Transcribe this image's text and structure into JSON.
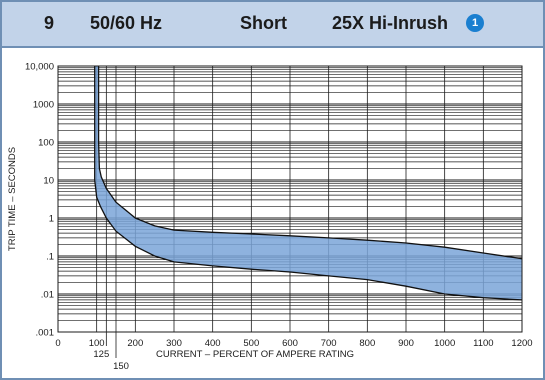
{
  "header": {
    "curve_number": "9",
    "frequency": "50/60 Hz",
    "speed": "Short",
    "curve_name": "25X Hi-Inrush",
    "note_badge": "1"
  },
  "colors": {
    "header_bg": "#c2d3e9",
    "border": "#6f8fb4",
    "band_fill": "#7aa4d8",
    "badge": "#1a7fd0"
  },
  "chart_data": {
    "type": "area",
    "title": "",
    "xlabel": "CURRENT – PERCENT OF AMPERE RATING",
    "ylabel": "TRIP TIME – SECONDS",
    "xlim": [
      0,
      1200
    ],
    "ylim": [
      0.001,
      10000
    ],
    "y_scale": "log",
    "grid": true,
    "x_ticks": [
      "0",
      "100",
      "200",
      "300",
      "400",
      "500",
      "600",
      "700",
      "800",
      "900",
      "1000",
      "1100",
      "1200"
    ],
    "x_extra_ticks": [
      "125",
      "150"
    ],
    "y_ticks": [
      "10,000",
      "1000",
      "100",
      "10",
      "1",
      ".1",
      ".01",
      ".001"
    ],
    "series": [
      {
        "x": [
          105,
          105,
          107,
          112,
          125,
          150,
          200,
          250,
          300,
          400,
          500,
          600,
          700,
          800,
          900,
          1000,
          1100,
          1200
        ],
        "y": [
          10000,
          100,
          20,
          12,
          6,
          2.6,
          1.0,
          0.62,
          0.48,
          0.42,
          0.38,
          0.34,
          0.3,
          0.26,
          0.22,
          0.17,
          0.12,
          0.085
        ]
      },
      {
        "x": [
          95,
          95,
          100,
          110,
          125,
          150,
          200,
          250,
          300,
          400,
          500,
          600,
          700,
          800,
          900,
          1000,
          1100,
          1200
        ],
        "y": [
          10000,
          10,
          3.5,
          2.0,
          1.0,
          0.45,
          0.18,
          0.1,
          0.07,
          0.055,
          0.045,
          0.038,
          0.03,
          0.024,
          0.016,
          0.01,
          0.008,
          0.007
        ]
      }
    ]
  }
}
